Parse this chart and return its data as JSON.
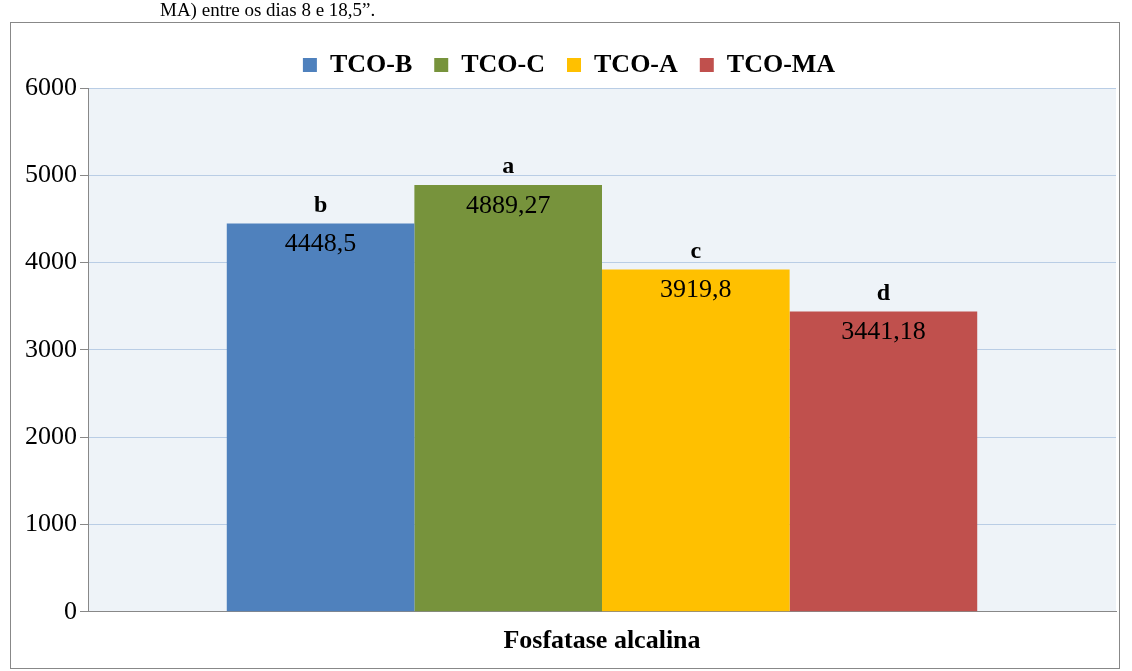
{
  "chart_data": {
    "type": "bar",
    "xlabel": "Fosfatase alcalina",
    "categories": [
      null
    ],
    "series": [
      {
        "name": "TCO-B",
        "color": "#4f81bd",
        "values": [
          4448.5
        ],
        "value_labels": [
          "4448,5"
        ]
      },
      {
        "name": "TCO-C",
        "color": "#77933c",
        "values": [
          4889.27
        ],
        "value_labels": [
          "4889,27"
        ]
      },
      {
        "name": "TCO-A",
        "color": "#ffc000",
        "values": [
          3919.8
        ],
        "value_labels": [
          "3919,8"
        ]
      },
      {
        "name": "TCO-MA",
        "color": "#c0504d",
        "values": [
          3441.18
        ],
        "value_labels": [
          "3441,18"
        ]
      }
    ],
    "ylim": [
      0,
      6000
    ],
    "yticks": [
      0,
      1000,
      2000,
      3000,
      4000,
      5000,
      6000
    ],
    "grid": "y",
    "legend": "top",
    "annotations": [
      {
        "text": "b",
        "y": 4448.5
      },
      {
        "text": "a",
        "y": 4889.27
      },
      {
        "text": "c",
        "y": 3919.8
      },
      {
        "text": "d",
        "y": 3441.18
      },
      "MA) entre os dias 8 e 18,5”."
    ]
  }
}
